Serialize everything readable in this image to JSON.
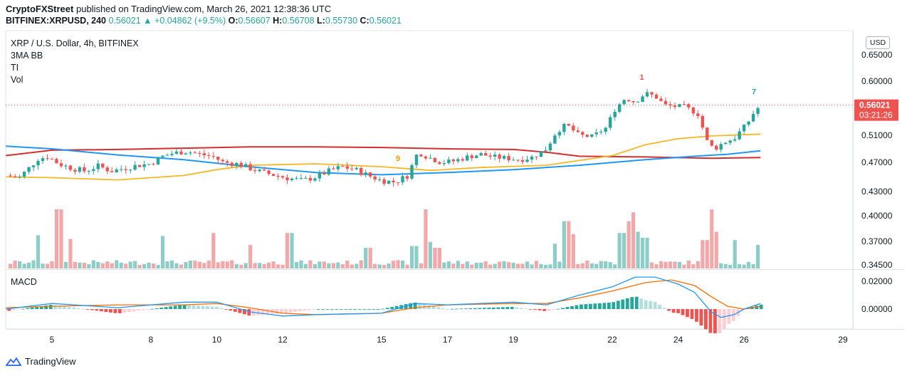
{
  "header": {
    "publisher": "CryptoFXStreet",
    "published_text": "published on TradingView.com, March 26, 2021 12:38:36 UTC",
    "symbol_line": "BITFINEX:XRPUSD, 240",
    "last": "0.56021",
    "change": "+0.04862 (+9.5%)",
    "ohlc": {
      "o_label": "O:",
      "o": "0.56607",
      "h_label": "H:",
      "h": "0.56708",
      "l_label": "L:",
      "l": "0.55730",
      "c_label": "C:",
      "c": "0.56021"
    }
  },
  "legend": {
    "title": "XRP / U.S. Dollar, 4h, BITFINEX",
    "items": [
      "3MA BB",
      "TI",
      "Vol"
    ]
  },
  "currency_button": "USD",
  "macd_label": "MACD",
  "footer": {
    "brand": "TradingView"
  },
  "colors": {
    "up": "#26a69a",
    "down": "#ef5350",
    "vol_up": "#8ecdc7",
    "vol_down": "#f2a8a8",
    "ma_fast": "#2196f3",
    "ma_mid": "#f5b727",
    "ma_slow": "#d32f2f",
    "macd_line": "#2196f3",
    "signal_line": "#ff6d00",
    "price_line": "#ef5350"
  },
  "chart_data": {
    "type": "candlestick",
    "price_axis": {
      "ticks": [
        "0.65000",
        "0.60000",
        "0.51000",
        "0.47000",
        "0.43000"
      ],
      "ticks_values": [
        0.65,
        0.6,
        0.51,
        0.47,
        0.43
      ],
      "current_label": "0.56021",
      "countdown": "03:21:26"
    },
    "volume_axis": {
      "ticks": [
        "0.40000",
        "0.37000",
        "0.34500"
      ]
    },
    "macd_axis": {
      "ticks": [
        "0.02000",
        "0.00000"
      ]
    },
    "x_ticks": [
      {
        "label": "5",
        "t": 5
      },
      {
        "label": "8",
        "t": 8
      },
      {
        "label": "10",
        "t": 10
      },
      {
        "label": "12",
        "t": 12
      },
      {
        "label": "15",
        "t": 15
      },
      {
        "label": "17",
        "t": 17
      },
      {
        "label": "19",
        "t": 19
      },
      {
        "label": "22",
        "t": 22
      },
      {
        "label": "24",
        "t": 24
      },
      {
        "label": "26",
        "t": 26
      },
      {
        "label": "29",
        "t": 29
      }
    ],
    "annotations": [
      {
        "text": "9",
        "t": 15.5,
        "price": 0.472,
        "color": "#ff9800"
      },
      {
        "text": "1",
        "t": 22.9,
        "price": 0.603,
        "color": "#ef5350"
      },
      {
        "text": "7",
        "t": 26.3,
        "price": 0.578,
        "color": "#26a69a"
      }
    ],
    "close_path": [
      [
        3.6,
        0.452
      ],
      [
        4.0,
        0.449
      ],
      [
        4.3,
        0.462
      ],
      [
        4.6,
        0.476
      ],
      [
        4.9,
        0.478
      ],
      [
        5.2,
        0.468
      ],
      [
        5.6,
        0.462
      ],
      [
        6.0,
        0.458
      ],
      [
        6.4,
        0.465
      ],
      [
        6.8,
        0.458
      ],
      [
        7.2,
        0.462
      ],
      [
        7.6,
        0.466
      ],
      [
        8.0,
        0.468
      ],
      [
        8.3,
        0.478
      ],
      [
        8.7,
        0.484
      ],
      [
        9.1,
        0.486
      ],
      [
        9.5,
        0.482
      ],
      [
        9.9,
        0.478
      ],
      [
        10.2,
        0.47
      ],
      [
        10.6,
        0.468
      ],
      [
        11.0,
        0.462
      ],
      [
        11.4,
        0.456
      ],
      [
        11.8,
        0.452
      ],
      [
        12.2,
        0.448
      ],
      [
        12.6,
        0.445
      ],
      [
        13.0,
        0.45
      ],
      [
        13.4,
        0.458
      ],
      [
        13.8,
        0.464
      ],
      [
        14.2,
        0.46
      ],
      [
        14.6,
        0.452
      ],
      [
        15.0,
        0.445
      ],
      [
        15.4,
        0.443
      ],
      [
        15.8,
        0.452
      ],
      [
        16.1,
        0.485
      ],
      [
        16.4,
        0.478
      ],
      [
        16.8,
        0.47
      ],
      [
        17.2,
        0.472
      ],
      [
        17.6,
        0.478
      ],
      [
        18.0,
        0.482
      ],
      [
        18.4,
        0.478
      ],
      [
        18.8,
        0.476
      ],
      [
        19.2,
        0.474
      ],
      [
        19.6,
        0.478
      ],
      [
        20.0,
        0.49
      ],
      [
        20.3,
        0.515
      ],
      [
        20.6,
        0.528
      ],
      [
        21.0,
        0.51
      ],
      [
        21.4,
        0.508
      ],
      [
        21.8,
        0.522
      ],
      [
        22.1,
        0.555
      ],
      [
        22.4,
        0.572
      ],
      [
        22.7,
        0.565
      ],
      [
        23.0,
        0.58
      ],
      [
        23.3,
        0.575
      ],
      [
        23.6,
        0.56
      ],
      [
        23.9,
        0.558
      ],
      [
        24.2,
        0.558
      ],
      [
        24.6,
        0.545
      ],
      [
        24.9,
        0.498
      ],
      [
        25.1,
        0.49
      ],
      [
        25.4,
        0.5
      ],
      [
        25.7,
        0.505
      ],
      [
        25.9,
        0.518
      ],
      [
        26.1,
        0.53
      ],
      [
        26.3,
        0.548
      ],
      [
        26.5,
        0.56
      ]
    ],
    "ma_fast": [
      [
        3.6,
        0.494
      ],
      [
        5,
        0.49
      ],
      [
        7,
        0.481
      ],
      [
        9,
        0.474
      ],
      [
        11,
        0.464
      ],
      [
        13,
        0.456
      ],
      [
        15,
        0.453
      ],
      [
        17,
        0.456
      ],
      [
        19,
        0.46
      ],
      [
        21,
        0.466
      ],
      [
        23,
        0.474
      ],
      [
        24.5,
        0.479
      ],
      [
        25.5,
        0.482
      ],
      [
        26.5,
        0.487
      ]
    ],
    "ma_mid": [
      [
        3.6,
        0.45
      ],
      [
        5,
        0.449
      ],
      [
        7,
        0.446
      ],
      [
        9,
        0.452
      ],
      [
        10,
        0.46
      ],
      [
        11,
        0.466
      ],
      [
        13,
        0.468
      ],
      [
        15,
        0.464
      ],
      [
        16.5,
        0.459
      ],
      [
        18,
        0.463
      ],
      [
        20,
        0.466
      ],
      [
        22,
        0.48
      ],
      [
        23,
        0.496
      ],
      [
        24,
        0.505
      ],
      [
        25,
        0.509
      ],
      [
        26.5,
        0.512
      ]
    ],
    "ma_slow": [
      [
        3.6,
        0.48
      ],
      [
        5,
        0.488
      ],
      [
        7,
        0.489
      ],
      [
        9,
        0.491
      ],
      [
        11,
        0.493
      ],
      [
        13,
        0.493
      ],
      [
        15,
        0.492
      ],
      [
        17,
        0.49
      ],
      [
        19,
        0.489
      ],
      [
        20,
        0.485
      ],
      [
        21,
        0.479
      ],
      [
        23,
        0.478
      ],
      [
        25,
        0.476
      ],
      [
        26.5,
        0.477
      ]
    ],
    "volume_spikes": [
      {
        "t": 4.6,
        "v": 0.56
      },
      {
        "t": 5.2,
        "v": 1.0
      },
      {
        "t": 5.6,
        "v": 0.5
      },
      {
        "t": 8.4,
        "v": 0.55
      },
      {
        "t": 9.9,
        "v": 0.6
      },
      {
        "t": 11.0,
        "v": 0.4
      },
      {
        "t": 12.2,
        "v": 0.6
      },
      {
        "t": 14.6,
        "v": 0.35
      },
      {
        "t": 16.0,
        "v": 0.38
      },
      {
        "t": 16.3,
        "v": 1.0
      },
      {
        "t": 16.5,
        "v": 0.45
      },
      {
        "t": 16.7,
        "v": 0.35
      },
      {
        "t": 20.3,
        "v": 0.42
      },
      {
        "t": 20.6,
        "v": 0.8
      },
      {
        "t": 20.8,
        "v": 0.58
      },
      {
        "t": 22.3,
        "v": 0.6
      },
      {
        "t": 22.5,
        "v": 0.8
      },
      {
        "t": 22.6,
        "v": 0.95
      },
      {
        "t": 22.8,
        "v": 0.62
      },
      {
        "t": 23.0,
        "v": 0.52
      },
      {
        "t": 24.8,
        "v": 0.48
      },
      {
        "t": 25.0,
        "v": 1.0
      },
      {
        "t": 25.2,
        "v": 0.62
      },
      {
        "t": 25.7,
        "v": 0.48
      },
      {
        "t": 26.5,
        "v": 0.4
      }
    ],
    "macd": [
      [
        3.6,
        0.0
      ],
      [
        5,
        0.004
      ],
      [
        7,
        0.001
      ],
      [
        9,
        0.005
      ],
      [
        10,
        0.005
      ],
      [
        11,
        -0.002
      ],
      [
        12,
        -0.005
      ],
      [
        13,
        -0.004
      ],
      [
        15,
        -0.003
      ],
      [
        16,
        0.004
      ],
      [
        17,
        0.003
      ],
      [
        19,
        0.005
      ],
      [
        20,
        0.003
      ],
      [
        21,
        0.01
      ],
      [
        22,
        0.016
      ],
      [
        22.7,
        0.023
      ],
      [
        23.3,
        0.023
      ],
      [
        24,
        0.018
      ],
      [
        24.5,
        0.012
      ],
      [
        25.0,
        -0.002
      ],
      [
        25.3,
        -0.006
      ],
      [
        25.7,
        -0.004
      ],
      [
        26.0,
        0.0
      ],
      [
        26.5,
        0.004
      ]
    ],
    "signal": [
      [
        3.6,
        0.001
      ],
      [
        5,
        0.002
      ],
      [
        7,
        0.003
      ],
      [
        9,
        0.003
      ],
      [
        10,
        0.004
      ],
      [
        11,
        0.001
      ],
      [
        12,
        -0.003
      ],
      [
        13,
        -0.004
      ],
      [
        15,
        -0.003
      ],
      [
        16,
        0.001
      ],
      [
        17,
        0.003
      ],
      [
        19,
        0.004
      ],
      [
        20,
        0.004
      ],
      [
        21,
        0.008
      ],
      [
        22,
        0.013
      ],
      [
        23,
        0.019
      ],
      [
        23.8,
        0.021
      ],
      [
        24.5,
        0.017
      ],
      [
        25.0,
        0.009
      ],
      [
        25.5,
        0.002
      ],
      [
        26.0,
        0.0
      ],
      [
        26.5,
        0.002
      ]
    ]
  }
}
